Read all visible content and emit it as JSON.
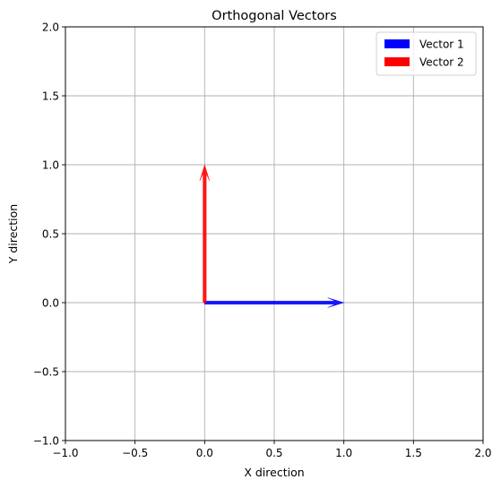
{
  "chart_data": {
    "type": "quiver",
    "title": "Orthogonal Vectors",
    "xlabel": "X direction",
    "ylabel": "Y direction",
    "xlim": [
      -1.0,
      2.0
    ],
    "ylim": [
      -1.0,
      2.0
    ],
    "xticks": [
      -1.0,
      -0.5,
      0.0,
      0.5,
      1.0,
      1.5,
      2.0
    ],
    "yticks": [
      -1.0,
      -0.5,
      0.0,
      0.5,
      1.0,
      1.5,
      2.0
    ],
    "xtick_labels": [
      "−1.0",
      "−0.5",
      "0.0",
      "0.5",
      "1.0",
      "1.5",
      "2.0"
    ],
    "ytick_labels": [
      "−1.0",
      "−0.5",
      "0.0",
      "0.5",
      "1.0",
      "1.5",
      "2.0"
    ],
    "grid": true,
    "legend_position": "top-right",
    "series": [
      {
        "name": "Vector 1",
        "origin": [
          0,
          0
        ],
        "vector": [
          1,
          0
        ],
        "color": "#0000ff"
      },
      {
        "name": "Vector 2",
        "origin": [
          0,
          0
        ],
        "vector": [
          0,
          1
        ],
        "color": "#ff0000"
      }
    ]
  }
}
